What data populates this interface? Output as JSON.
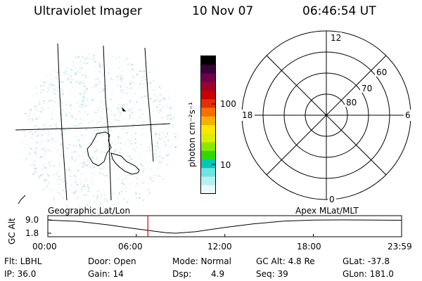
{
  "header": {
    "title": "Ultraviolet Imager",
    "date": "10 Nov 07",
    "time": "06:46:54 UT"
  },
  "colorbar": {
    "unit_label": "photon cm⁻²s⁻¹",
    "tick_100": "100",
    "tick_10": "10",
    "colors": [
      "#000000",
      "#3a003a",
      "#70004a",
      "#9e0028",
      "#c80000",
      "#e43000",
      "#f57000",
      "#f8b000",
      "#ffe800",
      "#d8f000",
      "#8ae800",
      "#30d800",
      "#00c8b8",
      "#70e4e4",
      "#b8f0f0",
      "#e8fafa"
    ]
  },
  "polar_plot": {
    "label_12": "12",
    "label_18": "18",
    "label_6": "6",
    "label_0": "0",
    "label_60": "60",
    "label_70": "70",
    "label_80": "80"
  },
  "altitude_plot": {
    "left_caption": "Geographic Lat/Lon",
    "right_caption": "Apex  MLat/MLT",
    "ylabel": "GC Alt",
    "ytick_top": "9.0",
    "ytick_bottom": "1.8",
    "xticks": [
      "00:00",
      "06:00",
      "12:00",
      "18:00",
      "23:59"
    ],
    "marker_color": "#d40000"
  },
  "chart_data": {
    "type": "line",
    "title": "",
    "xlabel": "",
    "ylabel": "GC Alt",
    "x": [
      "00:00",
      "02:00",
      "04:00",
      "06:00",
      "08:00",
      "08:40",
      "10:00",
      "12:00",
      "14:00",
      "16:00",
      "18:00",
      "20:00",
      "22:00",
      "23:59"
    ],
    "series": [
      {
        "values": [
          8.9,
          8.2,
          6.4,
          4.2,
          2.1,
          1.8,
          2.6,
          4.9,
          6.9,
          8.3,
          8.9,
          9.0,
          8.9,
          8.8
        ]
      }
    ],
    "ylim": [
      1.8,
      9.0
    ],
    "marker_time": "06:46:54"
  },
  "info": {
    "row1": {
      "flt": "Flt: LBHL",
      "door": "Door: Open",
      "mode": "Mode: Normal",
      "gcalt": "GC Alt: 4.8 Re",
      "glat": "GLat: -37.8"
    },
    "row2": {
      "ip": "IP: 36.0",
      "gain": "Gain: 14",
      "dsp_label": "Dsp:",
      "dsp_value": "4.9",
      "seq": "Seq: 39",
      "glon": "GLon: 181.0"
    }
  }
}
